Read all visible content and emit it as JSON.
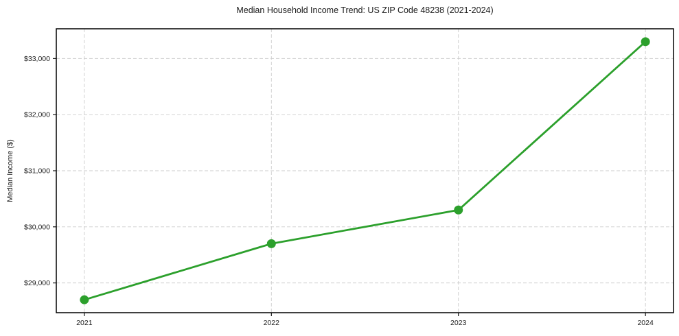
{
  "chart_data": {
    "type": "line",
    "title": "Median Household Income Trend: US ZIP Code 48238 (2021-2024)",
    "xlabel": "",
    "ylabel": "Median Income ($)",
    "categories": [
      "2021",
      "2022",
      "2023",
      "2024"
    ],
    "series": [
      {
        "name": "Median Household Income",
        "values": [
          28700,
          29700,
          30300,
          33300
        ],
        "color": "#2ca02c",
        "marker": "circle",
        "marker_size": 6.5,
        "line_width": 2.8
      }
    ],
    "yticks": [
      29000,
      30000,
      31000,
      32000,
      33000
    ],
    "ytick_labels": [
      "$29,000",
      "$30,000",
      "$31,000",
      "$32,000",
      "$33,000"
    ],
    "ylim": [
      28470,
      33530
    ],
    "grid": {
      "show": true,
      "style": "dashed",
      "color": "#cccccc"
    },
    "legend": {
      "show": false
    },
    "background_color": "#ffffff",
    "axis_color": "#000000"
  }
}
